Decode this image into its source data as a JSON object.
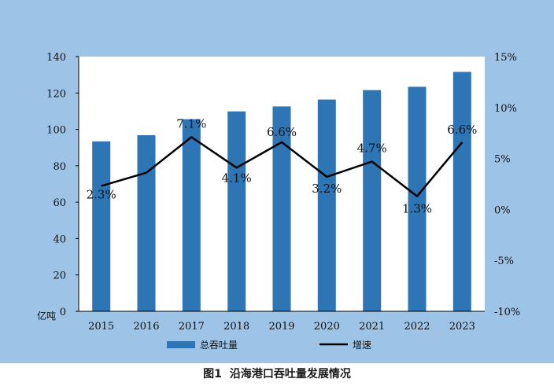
{
  "caption": {
    "number": "图1",
    "text": "沿海港口吞吐量发展情况"
  },
  "colors": {
    "background": "#9dc3e6",
    "plot_background": "#ffffff",
    "bar": "#2e75b6",
    "line": "#000000"
  },
  "chart_data": {
    "type": "bar",
    "categories": [
      "2015",
      "2016",
      "2017",
      "2018",
      "2019",
      "2020",
      "2021",
      "2022",
      "2023"
    ],
    "series": [
      {
        "name": "总吞吐量",
        "type": "bar",
        "axis": "left",
        "values": [
          93.4,
          96.8,
          105.6,
          109.9,
          112.6,
          116.4,
          121.6,
          123.4,
          131.6
        ]
      },
      {
        "name": "增速",
        "type": "line",
        "axis": "right",
        "values": [
          2.3,
          3.6,
          7.1,
          4.1,
          6.6,
          3.2,
          4.7,
          1.3,
          6.6
        ],
        "data_labels": {
          "0": "2.3%",
          "2": "7.1%",
          "3": "4.1%",
          "4": "6.6%",
          "5": "3.2%",
          "6": "4.7%",
          "7": "1.3%",
          "8": "6.6%"
        }
      }
    ],
    "y_left": {
      "label": "亿吨",
      "ylim": [
        0,
        140
      ],
      "ticks": [
        0,
        20,
        40,
        60,
        80,
        100,
        120,
        140
      ],
      "tick_labels": [
        "0",
        "20",
        "40",
        "60",
        "80",
        "100",
        "120",
        "140"
      ]
    },
    "y_right": {
      "ylim": [
        -10,
        15
      ],
      "ticks": [
        -10,
        -5,
        0,
        5,
        10,
        15
      ],
      "tick_labels": [
        "-10%",
        "-5%",
        "0%",
        "5%",
        "10%",
        "15%"
      ]
    },
    "legend": {
      "position": "bottom",
      "entries": [
        "总吞吐量",
        "增速"
      ]
    },
    "grid": false
  }
}
